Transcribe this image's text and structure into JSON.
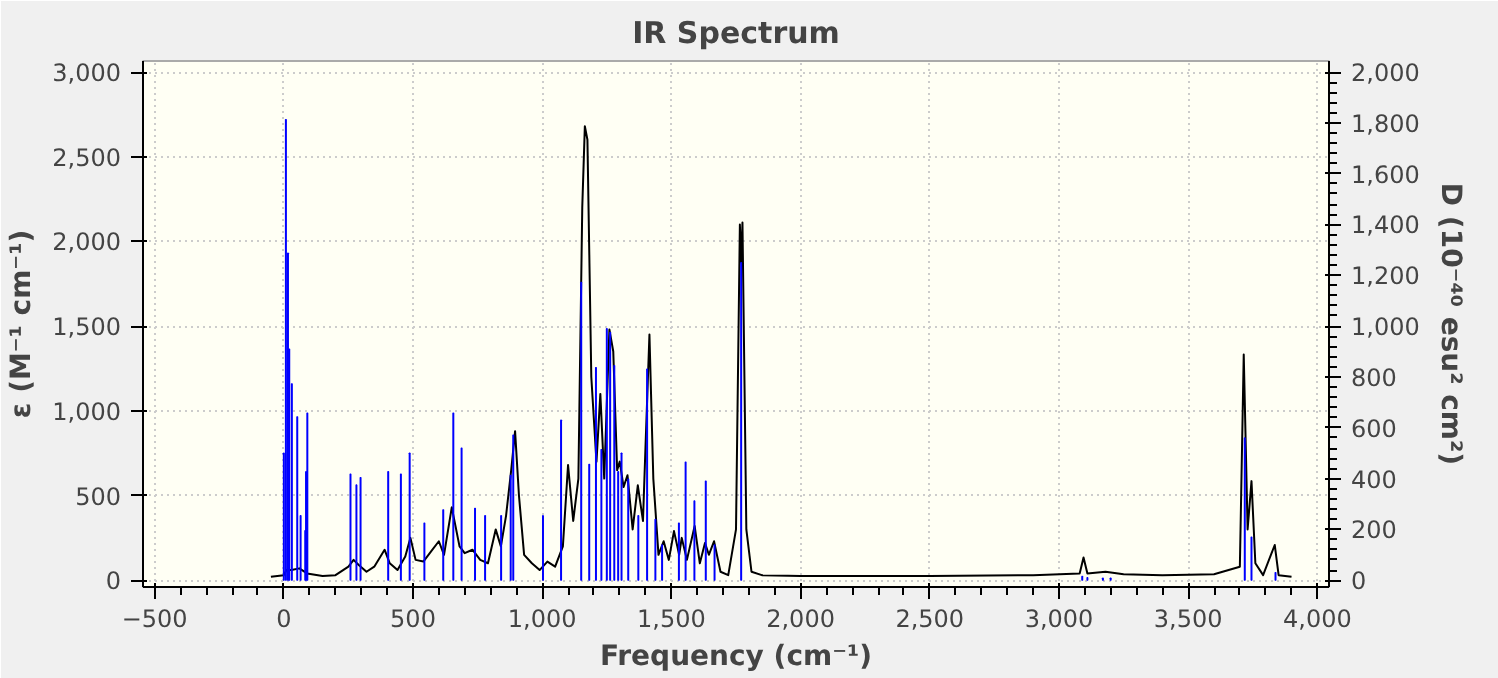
{
  "chart_data": {
    "type": "line",
    "title": "IR Spectrum",
    "xlabel": "Frequency (cm⁻¹)",
    "ylabel": "ε (M⁻¹ cm⁻¹)",
    "y2label": "D (10⁻⁴⁰ esu² cm²)",
    "xlim": [
      -545,
      4045
    ],
    "ylim": [
      -40,
      3065
    ],
    "y2lim": [
      -26.7,
      2043.3
    ],
    "xticks": [
      -500,
      0,
      500,
      {
        "value": 1000,
        "label": "1,000"
      },
      {
        "value": 1500,
        "label": "1,500"
      },
      {
        "value": 2000,
        "label": "2,000"
      },
      {
        "value": 2500,
        "label": "2,500"
      },
      {
        "value": 3000,
        "label": "3,000"
      },
      {
        "value": 3500,
        "label": "3,500"
      },
      {
        "value": 4000,
        "label": "4,000"
      }
    ],
    "yticks": [
      0,
      500,
      {
        "value": 1000,
        "label": "1,000"
      },
      {
        "value": 1500,
        "label": "1,500"
      },
      {
        "value": 2000,
        "label": "2,000"
      },
      {
        "value": 2500,
        "label": "2,500"
      },
      {
        "value": 3000,
        "label": "3,000"
      }
    ],
    "y2ticks": [
      0,
      200,
      400,
      600,
      800,
      {
        "value": 1000,
        "label": "1,000"
      },
      {
        "value": 1200,
        "label": "1,200"
      },
      {
        "value": 1400,
        "label": "1,400"
      },
      {
        "value": 1600,
        "label": "1,600"
      },
      {
        "value": 1800,
        "label": "1,800"
      },
      {
        "value": 2000,
        "label": "2,000"
      }
    ],
    "grid": true,
    "series": [
      {
        "type": "bar",
        "axis": "y2",
        "color": "#0000ff",
        "x": [
          0,
          8,
          16,
          21,
          31,
          52,
          65,
          83,
          86,
          91,
          258,
          281,
          297,
          404,
          453,
          487,
          544,
          617,
          656,
          688,
          740,
          779,
          841,
          878,
          888,
          1003,
          1073,
          1151,
          1182,
          1208,
          1229,
          1250,
          1263,
          1279,
          1294,
          1307,
          1333,
          1372,
          1406,
          1438,
          1464,
          1529,
          1555,
          1589,
          1633,
          1667,
          1770,
          3090,
          3110,
          3170,
          3200,
          3719,
          3745,
          3838
        ],
        "values": [
          500,
          1813,
          1287,
          910,
          773,
          643,
          254,
          195,
          427,
          658,
          418,
          375,
          404,
          427,
          418,
          500,
          225,
          277,
          658,
          520,
          283,
          254,
          254,
          413,
          571,
          254,
          630,
          1172,
          456,
          837,
          514,
          990,
          975,
          845,
          427,
          500,
          398,
          254,
          831,
          240,
          139,
          225,
          465,
          312,
          390,
          139,
          1250,
          15,
          10,
          8,
          8,
          560,
          170,
          30
        ]
      },
      {
        "color": "#000000",
        "x": [
          -50,
          0,
          10,
          30,
          60,
          90,
          150,
          200,
          250,
          270,
          290,
          320,
          350,
          390,
          410,
          440,
          470,
          490,
          510,
          540,
          570,
          600,
          620,
          650,
          680,
          700,
          730,
          760,
          790,
          820,
          840,
          860,
          880,
          895,
          910,
          930,
          960,
          990,
          1020,
          1050,
          1080,
          1100,
          1120,
          1140,
          1155,
          1165,
          1175,
          1190,
          1210,
          1225,
          1240,
          1260,
          1275,
          1290,
          1300,
          1315,
          1330,
          1350,
          1370,
          1390,
          1400,
          1415,
          1430,
          1450,
          1470,
          1490,
          1510,
          1530,
          1540,
          1560,
          1590,
          1610,
          1630,
          1645,
          1665,
          1690,
          1720,
          1750,
          1765,
          1770,
          1775,
          1790,
          1810,
          1850,
          2000,
          2500,
          2900,
          3080,
          3095,
          3110,
          3180,
          3250,
          3400,
          3600,
          3700,
          3715,
          3730,
          3745,
          3760,
          3790,
          3835,
          3850,
          3900
        ],
        "values": [
          20,
          30,
          60,
          60,
          70,
          40,
          25,
          30,
          80,
          120,
          90,
          50,
          80,
          180,
          100,
          60,
          140,
          250,
          120,
          110,
          170,
          230,
          150,
          430,
          200,
          160,
          180,
          120,
          100,
          300,
          200,
          380,
          650,
          880,
          500,
          150,
          100,
          60,
          110,
          80,
          200,
          680,
          350,
          600,
          2200,
          2680,
          2600,
          1200,
          700,
          1100,
          600,
          1480,
          1350,
          650,
          700,
          550,
          620,
          300,
          560,
          350,
          800,
          1450,
          600,
          150,
          230,
          120,
          290,
          150,
          250,
          120,
          320,
          100,
          220,
          150,
          230,
          50,
          30,
          300,
          2100,
          1875,
          2112,
          300,
          50,
          30,
          25,
          25,
          30,
          40,
          134,
          40,
          50,
          35,
          30,
          35,
          80,
          1333,
          300,
          585,
          100,
          30,
          208,
          30,
          20
        ]
      }
    ]
  }
}
